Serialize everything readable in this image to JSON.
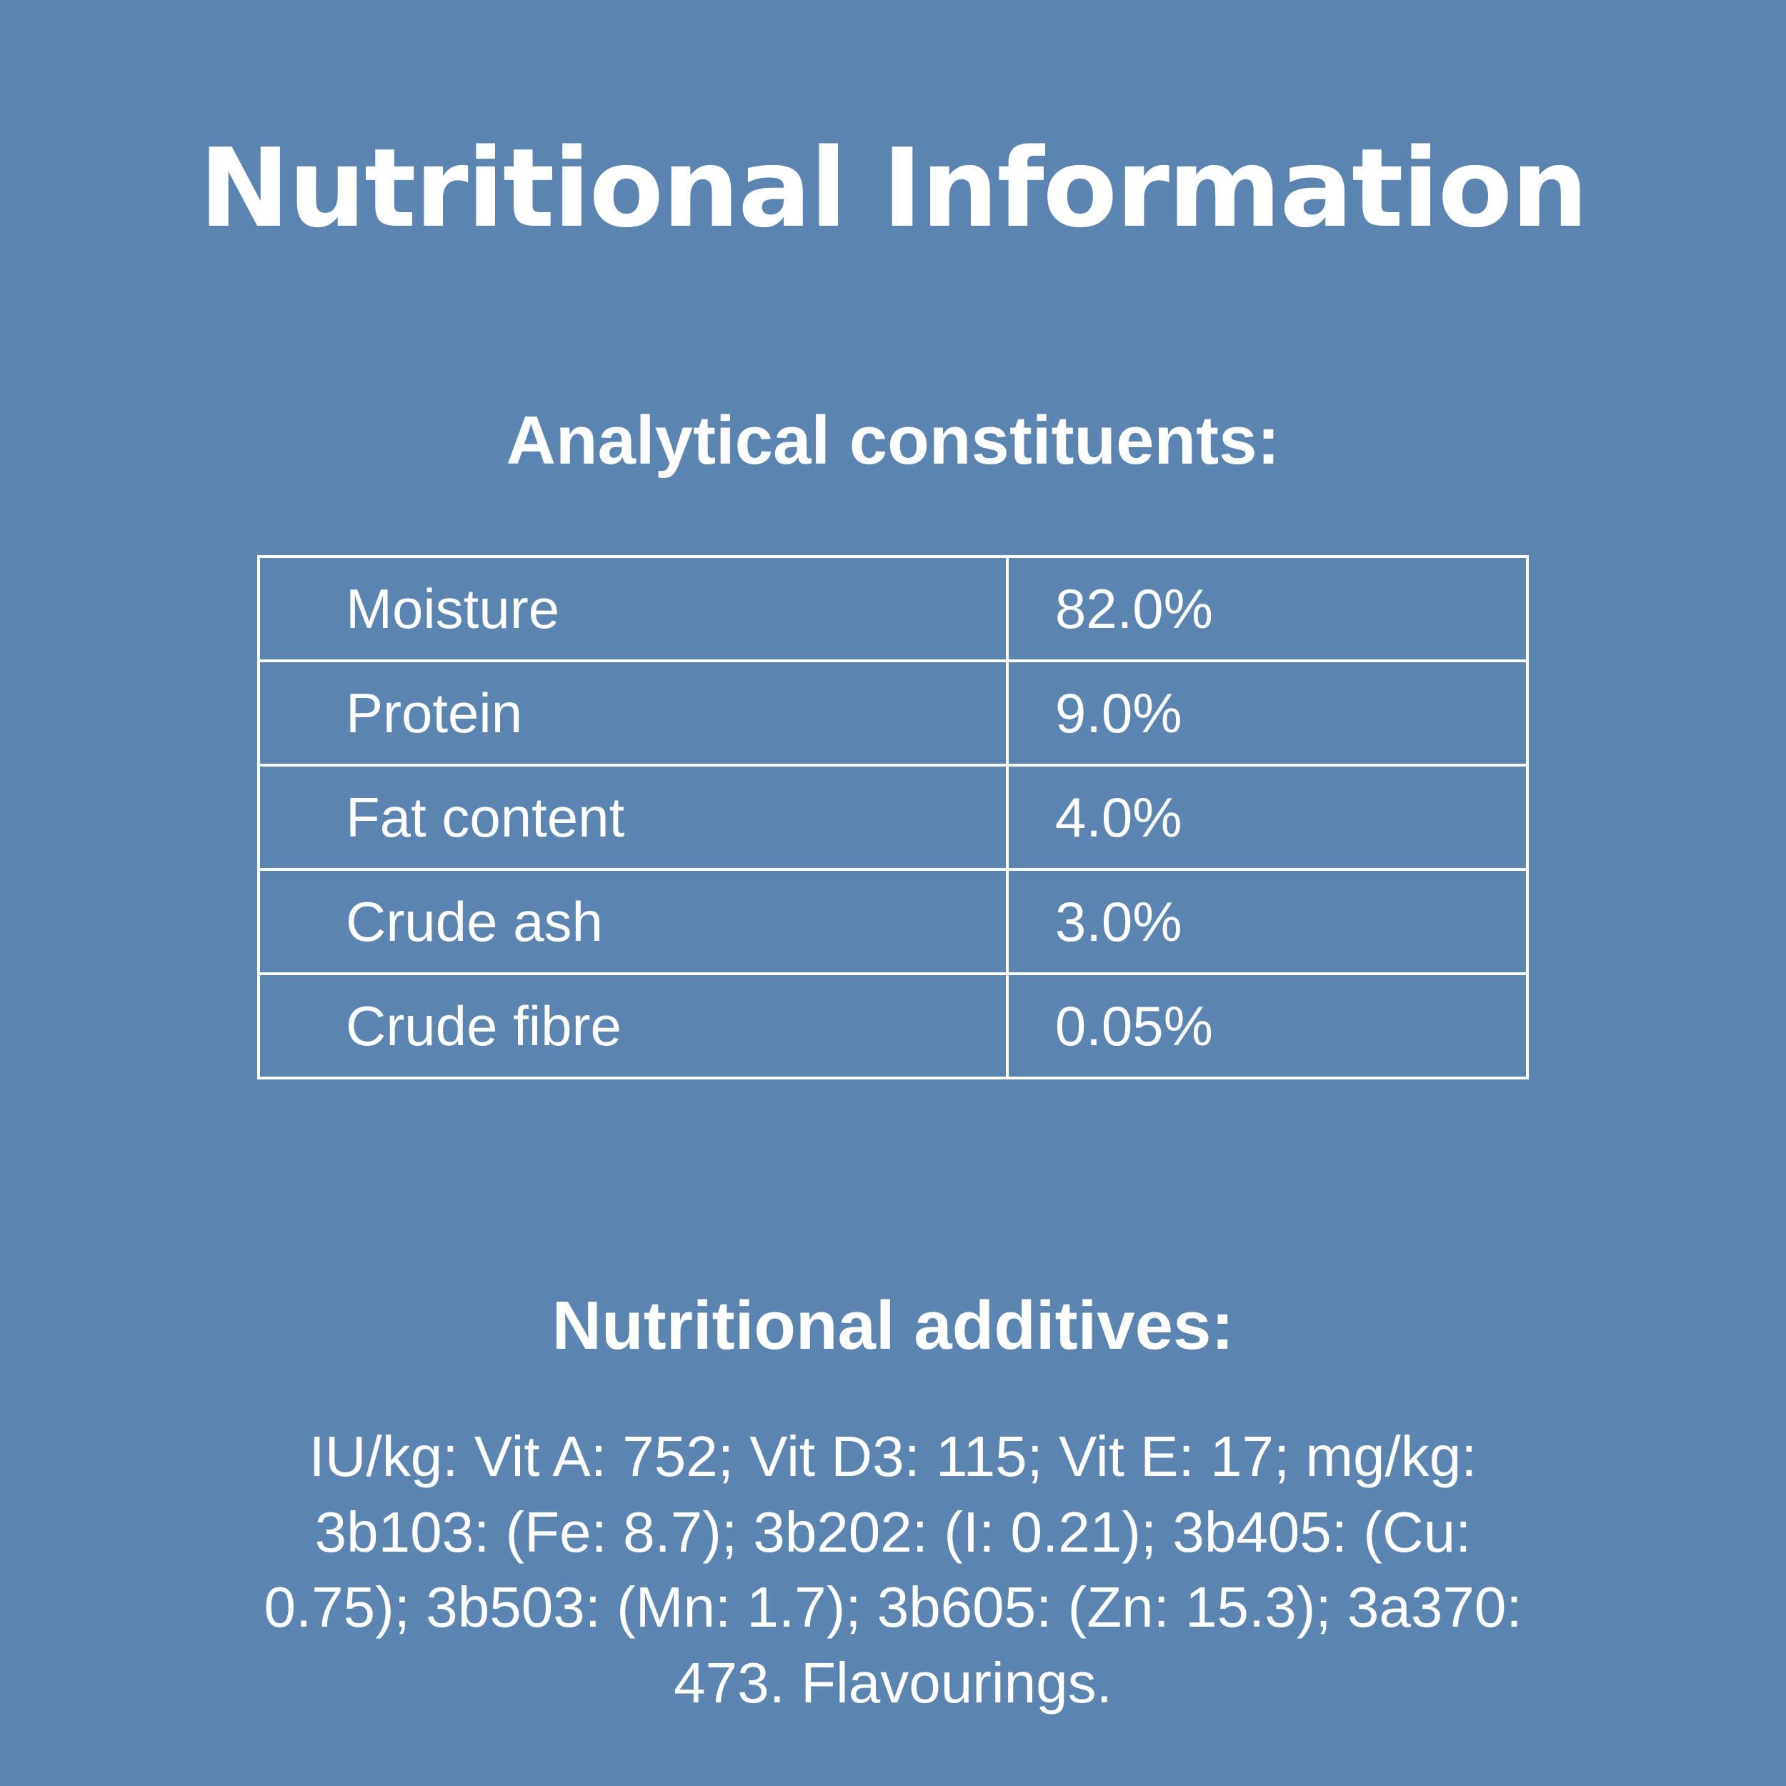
{
  "page": {
    "title": "Nutritional Information",
    "background_color": "#5b84b1",
    "text_color": "#ffffff"
  },
  "analytical": {
    "heading": "Analytical constituents:",
    "rows": [
      {
        "label": "Moisture",
        "value": "82.0%"
      },
      {
        "label": "Protein",
        "value": "9.0%"
      },
      {
        "label": "Fat content",
        "value": "4.0%"
      },
      {
        "label": "Crude ash",
        "value": "3.0%"
      },
      {
        "label": "Crude fibre",
        "value": "0.05%"
      }
    ]
  },
  "additives": {
    "heading": "Nutritional additives:",
    "text": "IU/kg: Vit A: 752; Vit D3: 115; Vit E: 17; mg/kg: 3b103: (Fe: 8.7); 3b202: (I: 0.21); 3b405: (Cu: 0.75); 3b503: (Mn: 1.7); 3b605: (Zn: 15.3); 3a370: 473. Flavourings."
  }
}
